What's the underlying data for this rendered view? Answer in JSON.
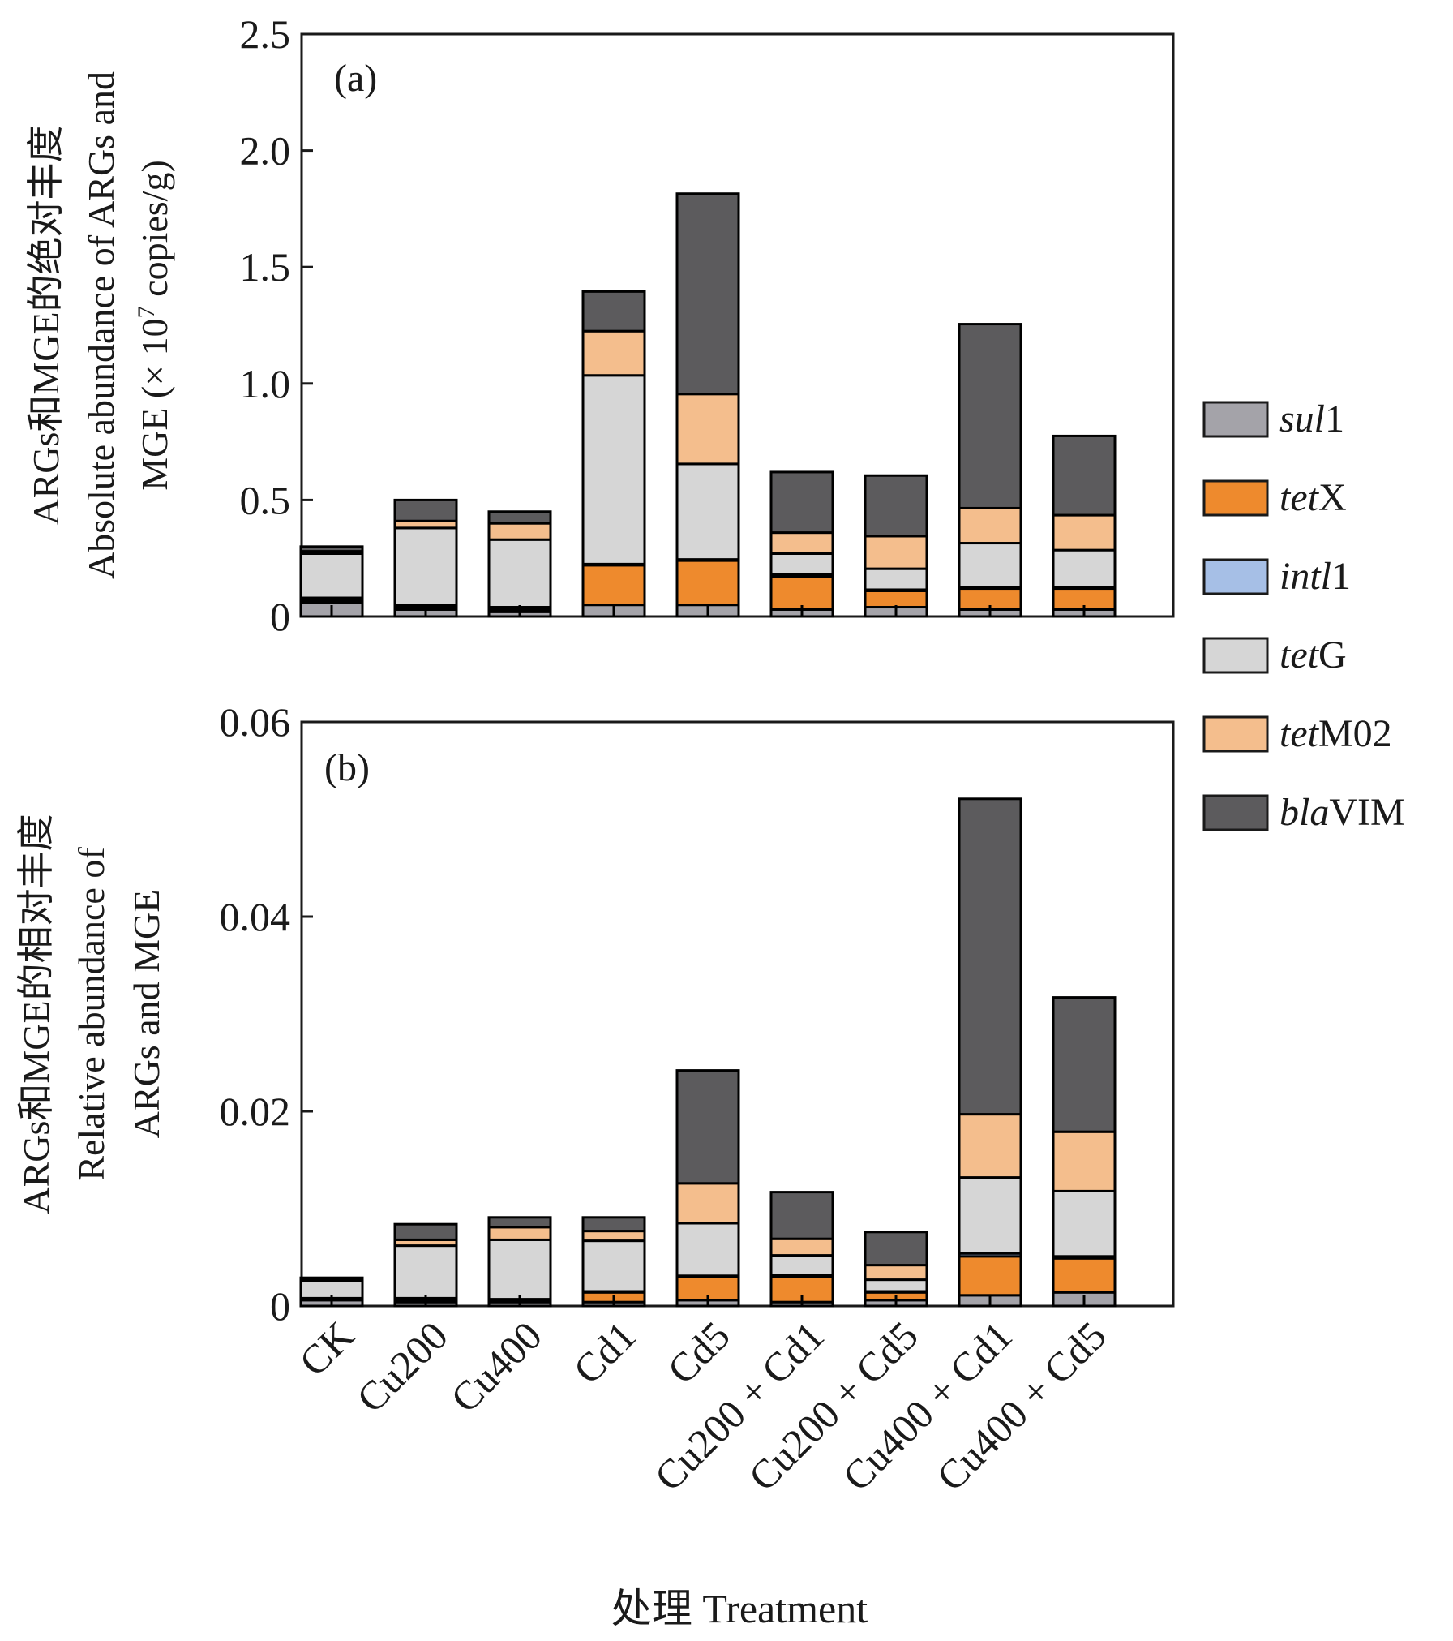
{
  "figure": {
    "xlabel": "处理 Treatment",
    "categories": [
      "CK",
      "Cu200",
      "Cu400",
      "Cd1",
      "Cd5",
      "Cu200 + Cd1",
      "Cu200 + Cd5",
      "Cu400 + Cd1",
      "Cu400 + Cd5"
    ]
  },
  "legend": [
    {
      "italic": "sul",
      "plain": "1",
      "color": "#a4a3a9"
    },
    {
      "italic": "tet",
      "plain": "X",
      "color": "#ee8a2d"
    },
    {
      "italic": "intl",
      "plain": "1",
      "color": "#a6bfe6"
    },
    {
      "italic": "tet",
      "plain": "G",
      "color": "#d6d6d6"
    },
    {
      "italic": "tet",
      "plain": "M02",
      "color": "#f4be8d"
    },
    {
      "italic": "bla",
      "plain": "VIM",
      "color": "#5c5b5d"
    }
  ],
  "chart_data": [
    {
      "type": "bar",
      "stacked": true,
      "panel_tag": "(a)",
      "ylabel_cn": "ARGs和MGE的绝对丰度",
      "ylabel_en_1": "Absolute abundance of ARGs and",
      "ylabel_en_2_a": "MGE (× 10",
      "ylabel_en_2_sup": "7",
      "ylabel_en_2_b": " copies/g)",
      "ylim": [
        0,
        2.5
      ],
      "yticks": [
        0,
        0.5,
        1.0,
        1.5,
        2.0,
        2.5
      ],
      "ytick_labels": [
        "0",
        "0.5",
        "1.0",
        "1.5",
        "2.0",
        "2.5"
      ],
      "categories": [
        "CK",
        "Cu200",
        "Cu400",
        "Cd1",
        "Cd5",
        "Cu200 + Cd1",
        "Cu200 + Cd5",
        "Cu400 + Cd1",
        "Cu400 + Cd5"
      ],
      "series": [
        {
          "name": "sul1",
          "values": [
            0.06,
            0.03,
            0.02,
            0.05,
            0.05,
            0.03,
            0.04,
            0.03,
            0.03
          ]
        },
        {
          "name": "tetX",
          "values": [
            0.01,
            0.01,
            0.01,
            0.17,
            0.19,
            0.14,
            0.07,
            0.09,
            0.09
          ]
        },
        {
          "name": "intl1",
          "values": [
            0.01,
            0.01,
            0.01,
            0.005,
            0.005,
            0.01,
            0.005,
            0.005,
            0.005
          ]
        },
        {
          "name": "tetG",
          "values": [
            0.19,
            0.33,
            0.29,
            0.81,
            0.41,
            0.09,
            0.09,
            0.19,
            0.16
          ]
        },
        {
          "name": "tetM02",
          "values": [
            0.01,
            0.03,
            0.07,
            0.19,
            0.3,
            0.09,
            0.14,
            0.15,
            0.15
          ]
        },
        {
          "name": "blaVIM",
          "values": [
            0.02,
            0.09,
            0.05,
            0.17,
            0.86,
            0.26,
            0.26,
            0.79,
            0.34
          ]
        }
      ]
    },
    {
      "type": "bar",
      "stacked": true,
      "panel_tag": "(b)",
      "ylabel_cn": "ARGs和MGE的相对丰度",
      "ylabel_en_1": "Relative abundance of",
      "ylabel_en_2": "ARGs and MGE",
      "ylim": [
        0,
        0.06
      ],
      "yticks": [
        0,
        0.02,
        0.04,
        0.06
      ],
      "ytick_labels": [
        "0",
        "0.02",
        "0.04",
        "0.06"
      ],
      "categories": [
        "CK",
        "Cu200",
        "Cu400",
        "Cd1",
        "Cd5",
        "Cu200 + Cd1",
        "Cu200 + Cd5",
        "Cu400 + Cd1",
        "Cu400 + Cd5"
      ],
      "series": [
        {
          "name": "sul1",
          "values": [
            0.0006,
            0.0004,
            0.0004,
            0.0004,
            0.0006,
            0.0004,
            0.0006,
            0.0011,
            0.0014
          ]
        },
        {
          "name": "tetX",
          "values": [
            0.0001,
            0.0002,
            0.0002,
            0.001,
            0.0024,
            0.0026,
            0.0008,
            0.004,
            0.0035
          ]
        },
        {
          "name": "intl1",
          "values": [
            0.0001,
            0.0002,
            0.0001,
            0.0001,
            0.0001,
            0.0002,
            0.0001,
            0.0003,
            0.0002
          ]
        },
        {
          "name": "tetG",
          "values": [
            0.0018,
            0.0054,
            0.0061,
            0.0052,
            0.0054,
            0.002,
            0.0012,
            0.0078,
            0.0067
          ]
        },
        {
          "name": "tetM02",
          "values": [
            0.0001,
            0.0006,
            0.0013,
            0.001,
            0.0041,
            0.0017,
            0.0015,
            0.0065,
            0.0061
          ]
        },
        {
          "name": "blaVIM",
          "values": [
            0.0002,
            0.0016,
            0.001,
            0.0014,
            0.0116,
            0.0048,
            0.0034,
            0.0324,
            0.0138
          ]
        }
      ]
    }
  ]
}
